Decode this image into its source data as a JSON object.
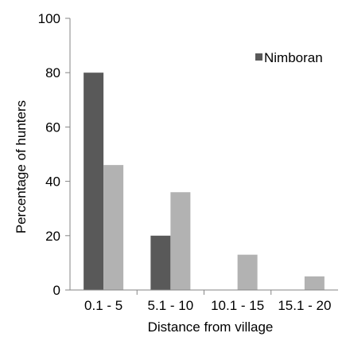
{
  "chart_data": {
    "type": "bar",
    "categories": [
      "0.1 - 5",
      "5.1 - 10",
      "10.1 - 15",
      "15.1 - 20"
    ],
    "series": [
      {
        "name": "Nimboran",
        "color": "#595959",
        "values": [
          80,
          20,
          0,
          0
        ]
      },
      {
        "name": "",
        "color": "#b2b2b2",
        "values": [
          46,
          36,
          13,
          5
        ]
      }
    ],
    "xlabel": "Distance from village",
    "ylabel": "Percentage of hunters",
    "ylim": [
      0,
      100
    ],
    "yticks": [
      0,
      20,
      40,
      60,
      80,
      100
    ],
    "grid": false,
    "legend": {
      "placement": "top-right",
      "entries": [
        "Nimboran"
      ]
    }
  }
}
